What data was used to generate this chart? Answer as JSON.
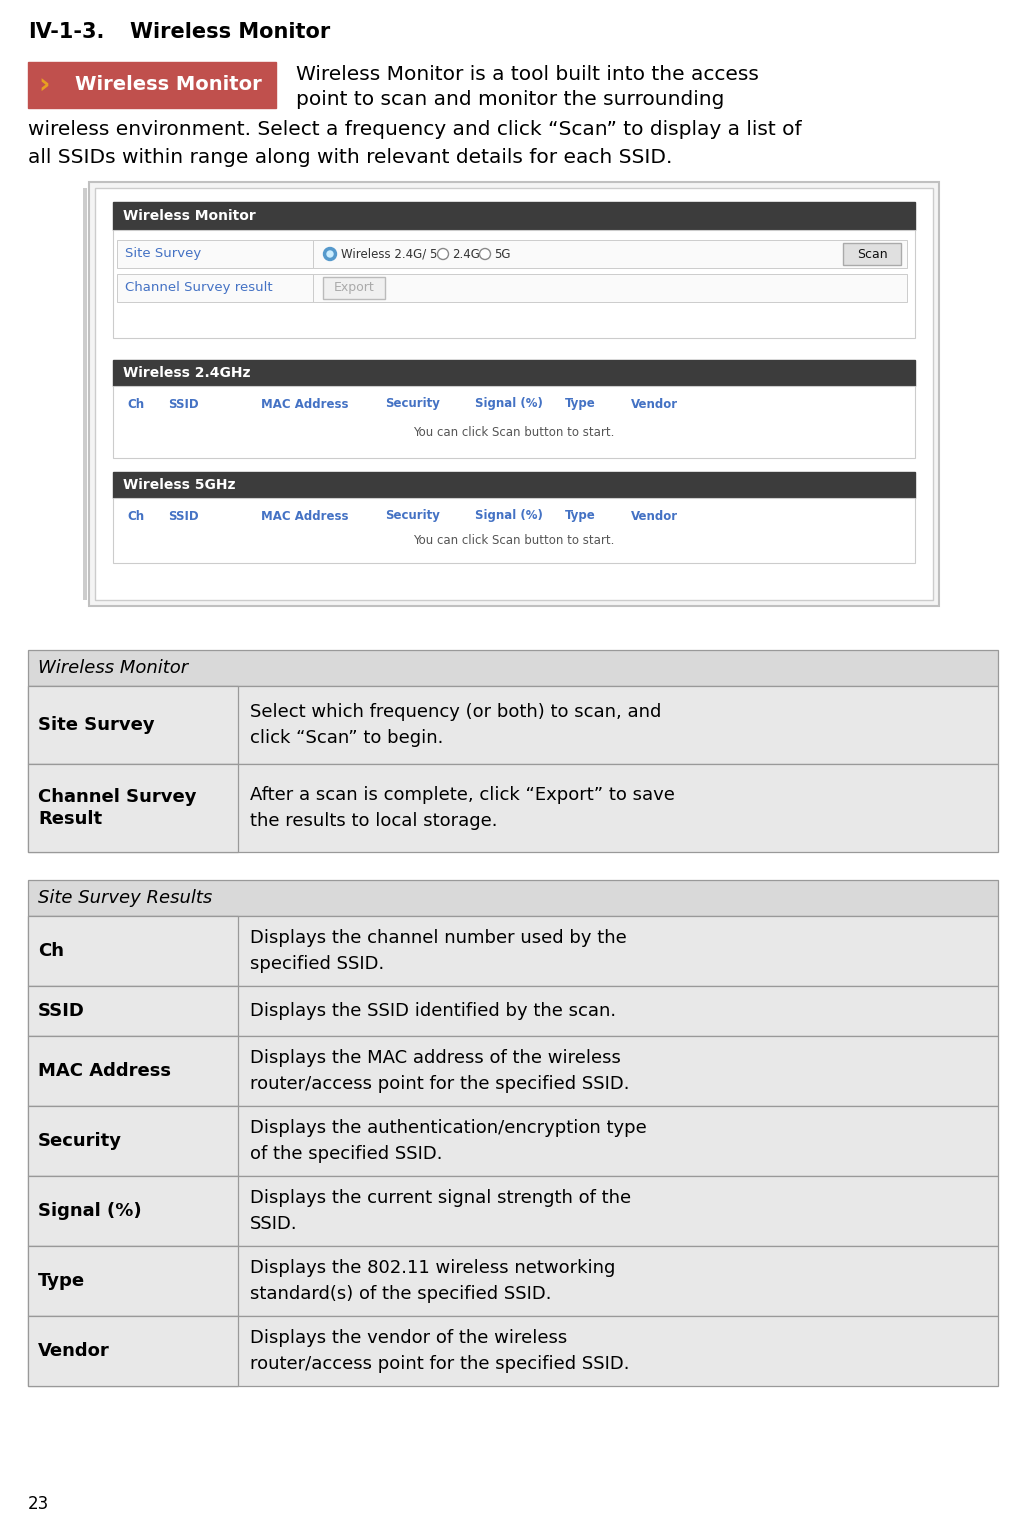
{
  "page_number": "23",
  "section_title": "IV-1-3.",
  "section_subtitle": "Wireless Monitor",
  "intro_text_line1": "Wireless Monitor is a tool built into the access",
  "intro_text_line2": "point to scan and monitor the surrounding",
  "intro_text_line3": "wireless environment. Select a frequency and click “Scan” to display a list of",
  "intro_text_line4": "all SSIDs within range along with relevant details for each SSID.",
  "badge_text": "Wireless Monitor",
  "badge_bg": "#c0504d",
  "badge_text_color": "#ffffff",
  "badge_arrow_color": "#e8a020",
  "ui_header_bg": "#3c3c3c",
  "ui_label_color": "#4472c4",
  "table1_header": "Wireless Monitor",
  "table1_rows": [
    [
      "Site Survey",
      "Select which frequency (or both) to scan, and\nclick “Scan” to begin."
    ],
    [
      "Channel Survey\nResult",
      "After a scan is complete, click “Export” to save\nthe results to local storage."
    ]
  ],
  "table2_header": "Site Survey Results",
  "table2_rows": [
    [
      "Ch",
      "Displays the channel number used by the\nspecified SSID."
    ],
    [
      "SSID",
      "Displays the SSID identified by the scan."
    ],
    [
      "MAC Address",
      "Displays the MAC address of the wireless\nrouter/access point for the specified SSID."
    ],
    [
      "Security",
      "Displays the authentication/encryption type\nof the specified SSID."
    ],
    [
      "Signal (%)",
      "Displays the current signal strength of the\nSSID."
    ],
    [
      "Type",
      "Displays the 802.11 wireless networking\nstandard(s) of the specified SSID."
    ],
    [
      "Vendor",
      "Displays the vendor of the wireless\nrouter/access point for the specified SSID."
    ]
  ],
  "table_header_bg": "#d9d9d9",
  "table_row_bg": "#e8e8e8",
  "table_border": "#999999",
  "background_color": "#ffffff"
}
